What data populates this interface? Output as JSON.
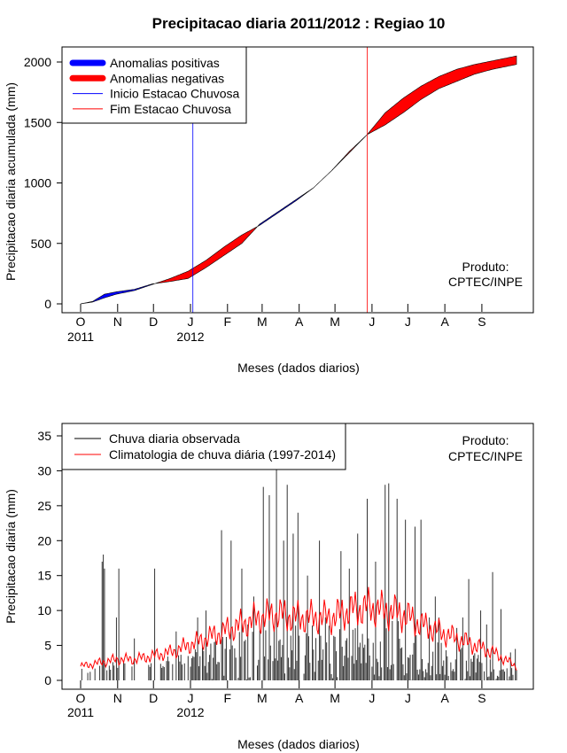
{
  "title": "Precipitacao diaria 2011/2012 : Regiao 10",
  "chart_data": [
    {
      "type": "area",
      "ylabel": "Precipitacao diaria acumulada (mm)",
      "xlabel": "Meses (dados diarios)",
      "ylim": [
        0,
        2000
      ],
      "yticks": [
        0,
        500,
        1000,
        1500,
        2000
      ],
      "months": [
        "O",
        "N",
        "D",
        "J",
        "F",
        "M",
        "A",
        "M",
        "J",
        "J",
        "A",
        "S"
      ],
      "years": [
        {
          "label": "2011",
          "month_index": 0
        },
        {
          "label": "2012",
          "month_index": 3
        }
      ],
      "start_season_day": 94,
      "end_season_day": 240,
      "observed_cum": [
        [
          0,
          0
        ],
        [
          10,
          20
        ],
        [
          20,
          80
        ],
        [
          30,
          100
        ],
        [
          45,
          120
        ],
        [
          60,
          165
        ],
        [
          75,
          185
        ],
        [
          90,
          210
        ],
        [
          105,
          300
        ],
        [
          120,
          400
        ],
        [
          135,
          500
        ],
        [
          150,
          660
        ],
        [
          165,
          760
        ],
        [
          180,
          860
        ],
        [
          195,
          960
        ],
        [
          210,
          1100
        ],
        [
          225,
          1250
        ],
        [
          240,
          1400
        ],
        [
          255,
          1480
        ],
        [
          270,
          1580
        ],
        [
          285,
          1690
        ],
        [
          300,
          1780
        ],
        [
          315,
          1840
        ],
        [
          330,
          1900
        ],
        [
          345,
          1940
        ],
        [
          360,
          1970
        ],
        [
          365,
          1980
        ]
      ],
      "climatology_cum": [
        [
          0,
          0
        ],
        [
          10,
          15
        ],
        [
          20,
          50
        ],
        [
          30,
          80
        ],
        [
          45,
          110
        ],
        [
          60,
          160
        ],
        [
          75,
          210
        ],
        [
          90,
          270
        ],
        [
          105,
          360
        ],
        [
          120,
          470
        ],
        [
          135,
          570
        ],
        [
          150,
          650
        ],
        [
          165,
          750
        ],
        [
          180,
          850
        ],
        [
          195,
          960
        ],
        [
          210,
          1100
        ],
        [
          225,
          1260
        ],
        [
          240,
          1400
        ],
        [
          255,
          1580
        ],
        [
          270,
          1700
        ],
        [
          285,
          1800
        ],
        [
          300,
          1880
        ],
        [
          315,
          1940
        ],
        [
          330,
          1980
        ],
        [
          345,
          2010
        ],
        [
          360,
          2040
        ],
        [
          365,
          2050
        ]
      ],
      "legend": [
        {
          "label": "Anomalias positivas",
          "color": "#0000FF"
        },
        {
          "label": "Anomalias negativas",
          "color": "#FF0000"
        },
        {
          "label": "Inicio Estacao Chuvosa",
          "color": "#0000FF"
        },
        {
          "label": "Fim Estacao Chuvosa",
          "color": "#FF0000"
        }
      ],
      "product_label": "Produto:",
      "product_source": "CPTEC/INPE"
    },
    {
      "type": "bar",
      "ylabel": "Precipitacao diaria (mm)",
      "xlabel": "Meses (dados diarios)",
      "ylim": [
        0,
        35
      ],
      "yticks": [
        0,
        5,
        10,
        15,
        20,
        25,
        30,
        35
      ],
      "months": [
        "O",
        "N",
        "D",
        "J",
        "F",
        "M",
        "A",
        "M",
        "J",
        "J",
        "A",
        "S"
      ],
      "years": [
        {
          "label": "2011",
          "month_index": 0
        },
        {
          "label": "2012",
          "month_index": 3
        }
      ],
      "legend": [
        {
          "label": "Chuva diaria observada",
          "color": "#000000"
        },
        {
          "label": "Climatologia de chuva diária (1997-2014)",
          "color": "#FF0000"
        }
      ],
      "product_label": "Produto:",
      "product_source": "CPTEC/INPE",
      "daily_observed_peaks": [
        [
          18,
          17
        ],
        [
          19,
          18
        ],
        [
          20,
          16
        ],
        [
          30,
          9
        ],
        [
          32,
          16
        ],
        [
          45,
          6
        ],
        [
          62,
          16
        ],
        [
          80,
          7
        ],
        [
          98,
          9
        ],
        [
          105,
          10
        ],
        [
          118,
          21.5
        ],
        [
          126,
          20
        ],
        [
          135,
          16
        ],
        [
          140,
          8
        ],
        [
          145,
          12
        ],
        [
          153,
          27.7
        ],
        [
          158,
          26.5
        ],
        [
          164,
          32
        ],
        [
          170,
          20
        ],
        [
          173,
          28
        ],
        [
          178,
          21
        ],
        [
          182,
          24
        ],
        [
          190,
          15
        ],
        [
          200,
          20
        ],
        [
          205,
          9
        ],
        [
          218,
          18.5
        ],
        [
          225,
          16
        ],
        [
          232,
          21
        ],
        [
          240,
          26
        ],
        [
          247,
          17
        ],
        [
          255,
          28
        ],
        [
          258,
          28.2
        ],
        [
          265,
          26
        ],
        [
          272,
          23
        ],
        [
          280,
          22
        ],
        [
          285,
          23
        ],
        [
          292,
          9
        ],
        [
          297,
          12
        ],
        [
          300,
          9
        ],
        [
          315,
          7.5
        ],
        [
          320,
          9
        ],
        [
          325,
          14.5
        ],
        [
          335,
          10
        ],
        [
          340,
          8
        ],
        [
          345,
          15.5
        ],
        [
          352,
          10.2
        ],
        [
          360,
          4
        ],
        [
          364,
          4.5
        ]
      ],
      "climatology": [
        [
          0,
          2
        ],
        [
          15,
          2.5
        ],
        [
          30,
          3
        ],
        [
          45,
          3
        ],
        [
          60,
          3.5
        ],
        [
          75,
          4
        ],
        [
          90,
          5
        ],
        [
          105,
          6
        ],
        [
          120,
          7
        ],
        [
          135,
          8
        ],
        [
          150,
          9
        ],
        [
          165,
          9.5
        ],
        [
          180,
          9
        ],
        [
          195,
          9
        ],
        [
          210,
          9
        ],
        [
          225,
          10
        ],
        [
          240,
          10.5
        ],
        [
          255,
          10
        ],
        [
          270,
          9.5
        ],
        [
          285,
          8
        ],
        [
          300,
          7
        ],
        [
          315,
          6
        ],
        [
          330,
          5
        ],
        [
          345,
          4
        ],
        [
          360,
          2.5
        ],
        [
          365,
          2
        ]
      ]
    }
  ]
}
